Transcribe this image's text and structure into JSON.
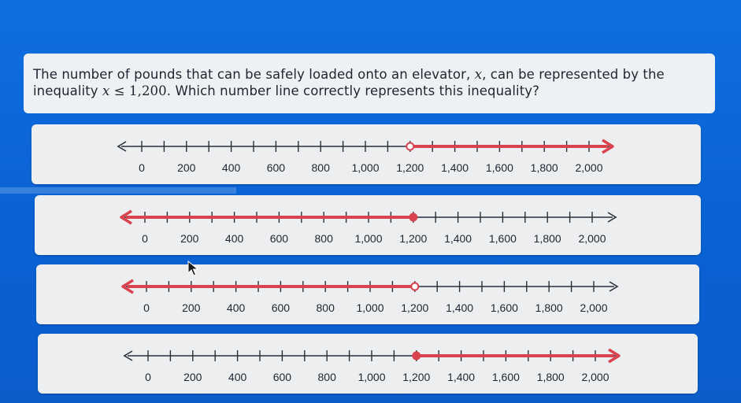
{
  "question": {
    "text_before": "The number of pounds that can be safely loaded onto an elevator, ",
    "variable": "x",
    "text_middle": ", can be represented by the inequality ",
    "inequality_var": "x",
    "inequality_sign": " ≤ ",
    "inequality_value": "1,200",
    "text_after": ". Which number line correctly represents this inequality?"
  },
  "tick_labels": [
    "0",
    "200",
    "400",
    "600",
    "800",
    "1,000",
    "1,200",
    "1,400",
    "1,600",
    "1,800",
    "2,000"
  ],
  "colors": {
    "ray": "#d9434e",
    "axis": "#2b2f3a"
  },
  "options": [
    {
      "id": "opt-a",
      "point": 1200,
      "point_style": "open",
      "direction": "right"
    },
    {
      "id": "opt-b",
      "point": 1200,
      "point_style": "closed",
      "direction": "left"
    },
    {
      "id": "opt-c",
      "point": 1200,
      "point_style": "open",
      "direction": "left"
    },
    {
      "id": "opt-d",
      "point": 1200,
      "point_style": "closed",
      "direction": "right"
    }
  ]
}
